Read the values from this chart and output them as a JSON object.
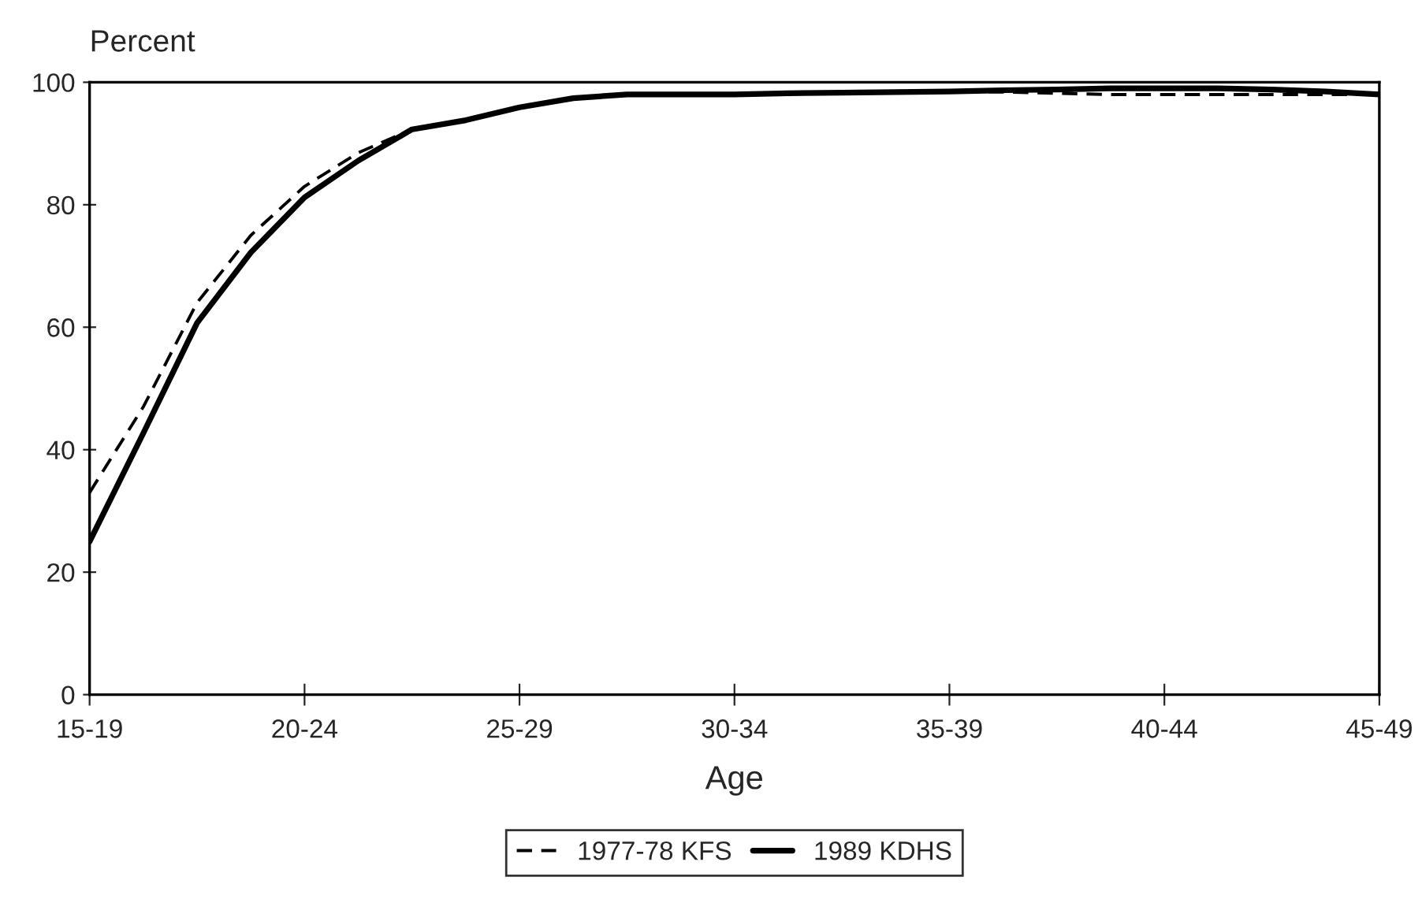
{
  "chart_data": {
    "type": "line",
    "ylabel": "Percent",
    "xlabel": "Age",
    "categories": [
      "15-19",
      null,
      null,
      null,
      "20-24",
      null,
      null,
      null,
      "25-29",
      null,
      null,
      null,
      "30-34",
      null,
      null,
      null,
      "35-39",
      null,
      null,
      null,
      "40-44",
      null,
      null,
      null,
      "45-49"
    ],
    "series": [
      {
        "name": "1977-78 KFS",
        "color": "#000000",
        "line_style": "dashed",
        "values": [
          33,
          47,
          64,
          75,
          83,
          88.5,
          92.3,
          93.8,
          95.9,
          97.4,
          98,
          98,
          98,
          98.2,
          98.3,
          98.4,
          98.5,
          98.4,
          98.2,
          98,
          98,
          98,
          98,
          98,
          98
        ]
      },
      {
        "name": "1989 KDHS",
        "color": "#000000",
        "line_style": "solid",
        "values": [
          25,
          42.7,
          60.7,
          72.2,
          81.2,
          87.2,
          92.3,
          93.8,
          95.9,
          97.4,
          98,
          98,
          98,
          98.2,
          98.3,
          98.4,
          98.5,
          98.7,
          98.8,
          99,
          99,
          99,
          98.8,
          98.5,
          98
        ]
      }
    ],
    "ylim": [
      0,
      100
    ],
    "yticks": [
      0,
      20,
      40,
      60,
      80,
      100
    ],
    "grid": false,
    "legend": "bottom",
    "marker": "none"
  }
}
